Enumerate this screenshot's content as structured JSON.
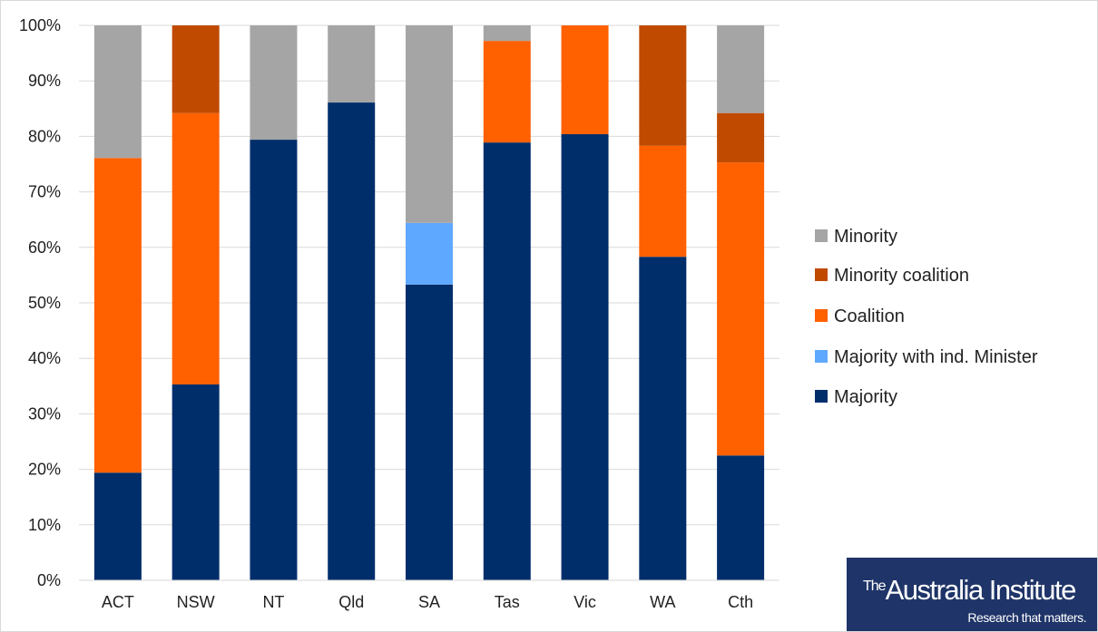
{
  "chart_data": {
    "type": "bar",
    "stacked": true,
    "categories": [
      "ACT",
      "NSW",
      "NT",
      "Qld",
      "SA",
      "Tas",
      "Vic",
      "WA",
      "Cth"
    ],
    "ylim": [
      0,
      100
    ],
    "yticks": [
      "0%",
      "10%",
      "20%",
      "30%",
      "40%",
      "50%",
      "60%",
      "70%",
      "80%",
      "90%",
      "100%"
    ],
    "grid": true,
    "legend_position": "right",
    "series": [
      {
        "name": "Majority",
        "color": "#002E6B",
        "values": [
          19.4,
          35.3,
          79.4,
          86.1,
          53.3,
          78.9,
          80.4,
          58.3,
          22.5
        ]
      },
      {
        "name": "Majority with ind. Minister",
        "color": "#5FA8FF",
        "values": [
          0,
          0,
          0,
          0,
          11.1,
          0,
          0,
          0,
          0
        ]
      },
      {
        "name": "Coalition",
        "color": "#FF6000",
        "values": [
          56.7,
          48.9,
          0,
          0,
          0,
          18.3,
          19.6,
          20.0,
          52.8
        ]
      },
      {
        "name": "Minority coalition",
        "color": "#C04A00",
        "values": [
          0,
          15.8,
          0,
          0,
          0,
          0,
          0,
          21.7,
          8.9
        ]
      },
      {
        "name": "Minority",
        "color": "#A5A5A5",
        "values": [
          23.9,
          0,
          20.6,
          13.9,
          35.6,
          2.8,
          0,
          0,
          15.8
        ]
      }
    ],
    "legend_order": [
      "Minority",
      "Minority coalition",
      "Coalition",
      "Majority with ind. Minister",
      "Majority"
    ]
  },
  "logo": {
    "name_prefix": "The",
    "name": "Australia Institute",
    "tagline": "Research that matters."
  }
}
